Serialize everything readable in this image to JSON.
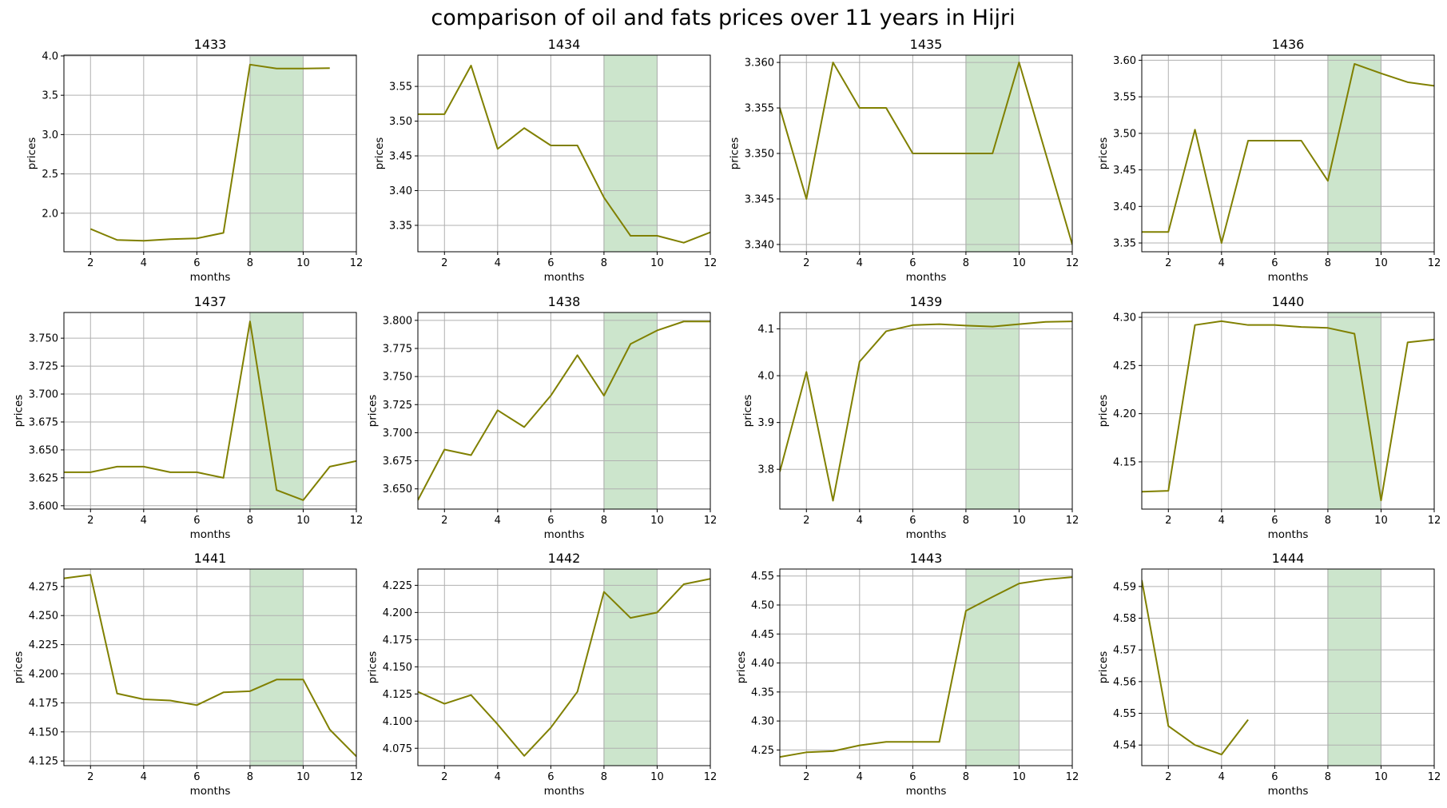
{
  "figure": {
    "title": "comparison of oil and fats prices over 11 years in Hijri",
    "line_color": "#808000",
    "highlight_color": "#cce5cc",
    "highlight_edge_color": "#9fbf9f",
    "grid_color": "#b0b0b0"
  },
  "chart_data": [
    {
      "type": "line",
      "title": "1433",
      "xlabel": "months",
      "ylabel": "prices",
      "xlim": [
        1,
        12
      ],
      "ylim": [
        1.51,
        4.01
      ],
      "highlight": [
        8,
        10
      ],
      "grid": true,
      "xticks": [
        2,
        4,
        6,
        8,
        10,
        12
      ],
      "yticks": [
        2.0,
        2.5,
        3.0,
        3.5,
        4.0
      ],
      "ytick_labels": [
        "2.0",
        "2.5",
        "3.0",
        "3.5",
        "4.0"
      ],
      "x": [
        2,
        3,
        4,
        5,
        6,
        7,
        8,
        9,
        10,
        11
      ],
      "values": [
        1.8,
        1.66,
        1.65,
        1.67,
        1.68,
        1.75,
        3.89,
        3.84,
        3.84,
        3.845
      ]
    },
    {
      "type": "line",
      "title": "1434",
      "xlabel": "months",
      "ylabel": "prices",
      "xlim": [
        1,
        12
      ],
      "ylim": [
        3.312,
        3.595
      ],
      "highlight": [
        8,
        10
      ],
      "grid": true,
      "xticks": [
        2,
        4,
        6,
        8,
        10,
        12
      ],
      "yticks": [
        3.35,
        3.4,
        3.45,
        3.5,
        3.55
      ],
      "ytick_labels": [
        "3.35",
        "3.40",
        "3.45",
        "3.50",
        "3.55"
      ],
      "x": [
        1,
        2,
        3,
        4,
        5,
        6,
        7,
        8,
        9,
        10,
        11,
        12
      ],
      "values": [
        3.51,
        3.51,
        3.58,
        3.46,
        3.49,
        3.465,
        3.465,
        3.39,
        3.335,
        3.335,
        3.325,
        3.34
      ]
    },
    {
      "type": "line",
      "title": "1435",
      "xlabel": "months",
      "ylabel": "prices",
      "xlim": [
        1,
        12
      ],
      "ylim": [
        3.3392,
        3.3608
      ],
      "highlight": [
        8,
        10
      ],
      "grid": true,
      "xticks": [
        2,
        4,
        6,
        8,
        10,
        12
      ],
      "yticks": [
        3.34,
        3.345,
        3.35,
        3.355,
        3.36
      ],
      "ytick_labels": [
        "3.340",
        "3.345",
        "3.350",
        "3.355",
        "3.360"
      ],
      "x": [
        1,
        2,
        3,
        4,
        5,
        6,
        7,
        8,
        9,
        10,
        11,
        12
      ],
      "values": [
        3.355,
        3.345,
        3.36,
        3.355,
        3.355,
        3.35,
        3.35,
        3.35,
        3.35,
        3.36,
        3.35,
        3.34
      ]
    },
    {
      "type": "line",
      "title": "1436",
      "xlabel": "months",
      "ylabel": "prices",
      "xlim": [
        1,
        12
      ],
      "ylim": [
        3.338,
        3.607
      ],
      "highlight": [
        8,
        10
      ],
      "grid": true,
      "xticks": [
        2,
        4,
        6,
        8,
        10,
        12
      ],
      "yticks": [
        3.35,
        3.4,
        3.45,
        3.5,
        3.55,
        3.6
      ],
      "ytick_labels": [
        "3.35",
        "3.40",
        "3.45",
        "3.50",
        "3.55",
        "3.60"
      ],
      "x": [
        1,
        2,
        3,
        4,
        5,
        6,
        7,
        8,
        9,
        10,
        11,
        12
      ],
      "values": [
        3.365,
        3.365,
        3.505,
        3.35,
        3.49,
        3.49,
        3.49,
        3.435,
        3.595,
        3.582,
        3.57,
        3.565
      ]
    },
    {
      "type": "line",
      "title": "1437",
      "xlabel": "months",
      "ylabel": "prices",
      "xlim": [
        1,
        12
      ],
      "ylim": [
        3.597,
        3.773
      ],
      "highlight": [
        8,
        10
      ],
      "grid": true,
      "xticks": [
        2,
        4,
        6,
        8,
        10,
        12
      ],
      "yticks": [
        3.6,
        3.625,
        3.65,
        3.675,
        3.7,
        3.725,
        3.75
      ],
      "ytick_labels": [
        "3.600",
        "3.625",
        "3.650",
        "3.675",
        "3.700",
        "3.725",
        "3.750"
      ],
      "x": [
        1,
        2,
        3,
        4,
        5,
        6,
        7,
        8,
        9,
        10,
        11,
        12
      ],
      "values": [
        3.63,
        3.63,
        3.635,
        3.635,
        3.63,
        3.63,
        3.625,
        3.765,
        3.614,
        3.605,
        3.635,
        3.64
      ]
    },
    {
      "type": "line",
      "title": "1438",
      "xlabel": "months",
      "ylabel": "prices",
      "xlim": [
        1,
        12
      ],
      "ylim": [
        3.632,
        3.807
      ],
      "highlight": [
        8,
        10
      ],
      "grid": true,
      "xticks": [
        2,
        4,
        6,
        8,
        10,
        12
      ],
      "yticks": [
        3.65,
        3.675,
        3.7,
        3.725,
        3.75,
        3.775,
        3.8
      ],
      "ytick_labels": [
        "3.650",
        "3.675",
        "3.700",
        "3.725",
        "3.750",
        "3.775",
        "3.800"
      ],
      "x": [
        1,
        2,
        3,
        4,
        5,
        6,
        7,
        8,
        9,
        10,
        11,
        12
      ],
      "values": [
        3.64,
        3.685,
        3.68,
        3.72,
        3.705,
        3.733,
        3.769,
        3.733,
        3.779,
        3.791,
        3.799,
        3.799
      ]
    },
    {
      "type": "line",
      "title": "1439",
      "xlabel": "months",
      "ylabel": "prices",
      "xlim": [
        1,
        12
      ],
      "ylim": [
        3.715,
        4.135
      ],
      "highlight": [
        8,
        10
      ],
      "grid": true,
      "xticks": [
        2,
        4,
        6,
        8,
        10,
        12
      ],
      "yticks": [
        3.8,
        3.9,
        4.0,
        4.1
      ],
      "ytick_labels": [
        "3.8",
        "3.9",
        "4.0",
        "4.1"
      ],
      "x": [
        1,
        2,
        3,
        4,
        5,
        6,
        7,
        8,
        9,
        10,
        11,
        12
      ],
      "values": [
        3.795,
        4.008,
        3.733,
        4.03,
        4.095,
        4.108,
        4.11,
        4.107,
        4.105,
        4.11,
        4.115,
        4.116
      ]
    },
    {
      "type": "line",
      "title": "1440",
      "xlabel": "months",
      "ylabel": "prices",
      "xlim": [
        1,
        12
      ],
      "ylim": [
        4.101,
        4.305
      ],
      "highlight": [
        8,
        10
      ],
      "grid": true,
      "xticks": [
        2,
        4,
        6,
        8,
        10,
        12
      ],
      "yticks": [
        4.15,
        4.2,
        4.25,
        4.3
      ],
      "ytick_labels": [
        "4.15",
        "4.20",
        "4.25",
        "4.30"
      ],
      "x": [
        1,
        2,
        3,
        4,
        5,
        6,
        7,
        8,
        9,
        10,
        11,
        12
      ],
      "values": [
        4.119,
        4.12,
        4.292,
        4.296,
        4.292,
        4.292,
        4.29,
        4.289,
        4.283,
        4.11,
        4.274,
        4.277
      ]
    },
    {
      "type": "line",
      "title": "1441",
      "xlabel": "months",
      "ylabel": "prices",
      "xlim": [
        1,
        12
      ],
      "ylim": [
        4.121,
        4.29
      ],
      "highlight": [
        8,
        10
      ],
      "grid": true,
      "xticks": [
        2,
        4,
        6,
        8,
        10,
        12
      ],
      "yticks": [
        4.125,
        4.15,
        4.175,
        4.2,
        4.225,
        4.25,
        4.275
      ],
      "ytick_labels": [
        "4.125",
        "4.150",
        "4.175",
        "4.200",
        "4.225",
        "4.250",
        "4.275"
      ],
      "x": [
        1,
        2,
        3,
        4,
        5,
        6,
        7,
        8,
        9,
        10,
        11,
        12
      ],
      "values": [
        4.282,
        4.285,
        4.183,
        4.178,
        4.177,
        4.173,
        4.184,
        4.185,
        4.195,
        4.195,
        4.152,
        4.129
      ]
    },
    {
      "type": "line",
      "title": "1442",
      "xlabel": "months",
      "ylabel": "prices",
      "xlim": [
        1,
        12
      ],
      "ylim": [
        4.059,
        4.24
      ],
      "highlight": [
        8,
        10
      ],
      "grid": true,
      "xticks": [
        2,
        4,
        6,
        8,
        10,
        12
      ],
      "yticks": [
        4.075,
        4.1,
        4.125,
        4.15,
        4.175,
        4.2,
        4.225
      ],
      "ytick_labels": [
        "4.075",
        "4.100",
        "4.125",
        "4.150",
        "4.175",
        "4.200",
        "4.225"
      ],
      "x": [
        1,
        2,
        3,
        4,
        5,
        6,
        7,
        8,
        9,
        10,
        11,
        12
      ],
      "values": [
        4.127,
        4.116,
        4.124,
        4.097,
        4.068,
        4.094,
        4.127,
        4.219,
        4.195,
        4.2,
        4.226,
        4.231
      ]
    },
    {
      "type": "line",
      "title": "1443",
      "xlabel": "months",
      "ylabel": "prices",
      "xlim": [
        1,
        12
      ],
      "ylim": [
        4.223,
        4.562
      ],
      "highlight": [
        8,
        10
      ],
      "grid": true,
      "xticks": [
        2,
        4,
        6,
        8,
        10,
        12
      ],
      "yticks": [
        4.25,
        4.3,
        4.35,
        4.4,
        4.45,
        4.5,
        4.55
      ],
      "ytick_labels": [
        "4.25",
        "4.30",
        "4.35",
        "4.40",
        "4.45",
        "4.50",
        "4.55"
      ],
      "x": [
        1,
        2,
        3,
        4,
        5,
        6,
        7,
        8,
        9,
        10,
        11,
        12
      ],
      "values": [
        4.238,
        4.246,
        4.248,
        4.258,
        4.264,
        4.264,
        4.264,
        4.49,
        4.514,
        4.537,
        4.544,
        4.548
      ]
    },
    {
      "type": "line",
      "title": "1444",
      "xlabel": "months",
      "ylabel": "prices",
      "xlim": [
        1,
        12
      ],
      "ylim": [
        4.5335,
        4.5955
      ],
      "highlight": [
        8,
        10
      ],
      "grid": true,
      "xticks": [
        2,
        4,
        6,
        8,
        10,
        12
      ],
      "yticks": [
        4.54,
        4.55,
        4.56,
        4.57,
        4.58,
        4.59
      ],
      "ytick_labels": [
        "4.54",
        "4.55",
        "4.56",
        "4.57",
        "4.58",
        "4.59"
      ],
      "x": [
        1,
        2,
        3,
        4,
        5
      ],
      "values": [
        4.592,
        4.546,
        4.54,
        4.537,
        4.548
      ]
    }
  ]
}
